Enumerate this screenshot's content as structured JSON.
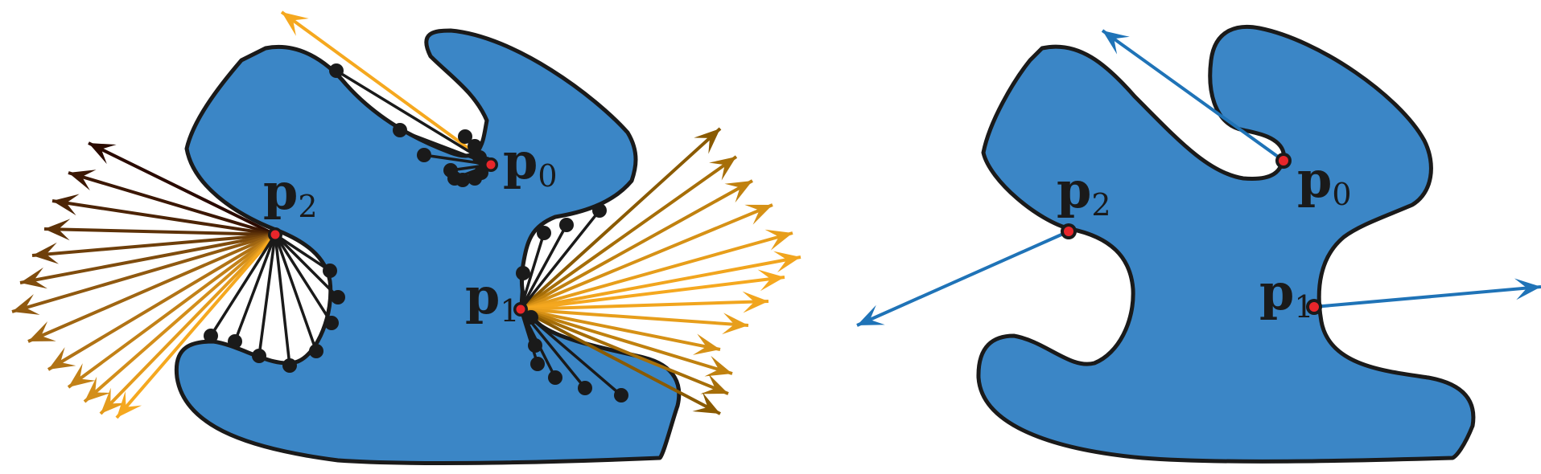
{
  "panels": [
    {
      "id": "left",
      "shape_color": "#3b86c6",
      "ray_colors": {
        "dark": "#2a0a00",
        "light": "#f5a81f"
      },
      "points": [
        {
          "name": "p0",
          "label": "p",
          "sub": "0"
        },
        {
          "name": "p1",
          "label": "p",
          "sub": "1"
        },
        {
          "name": "p2",
          "label": "p",
          "sub": "2"
        }
      ]
    },
    {
      "id": "right",
      "shape_color": "#3b86c6",
      "arrow_color": "#1f73b7",
      "points": [
        {
          "name": "p0",
          "label": "p",
          "sub": "0"
        },
        {
          "name": "p1",
          "label": "p",
          "sub": "1"
        },
        {
          "name": "p2",
          "label": "p",
          "sub": "2"
        }
      ]
    }
  ]
}
